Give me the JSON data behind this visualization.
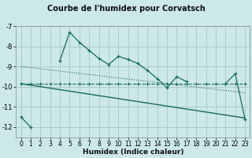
{
  "title": "Courbe de l'humidex pour Corvatsch",
  "xlabel": "Humidex (Indice chaleur)",
  "ylabel": "",
  "bg_color": "#cce8e8",
  "grid_color": "#aacccc",
  "line_color": "#1a6b5a",
  "x": [
    0,
    1,
    2,
    3,
    4,
    5,
    6,
    7,
    8,
    9,
    10,
    11,
    12,
    13,
    14,
    15,
    16,
    17,
    18,
    19,
    20,
    21,
    22,
    23
  ],
  "line1": [
    -11.5,
    -12.0,
    null,
    null,
    -8.7,
    -7.3,
    -7.8,
    -8.2,
    -8.6,
    -8.9,
    -8.5,
    -8.65,
    -8.85,
    -9.2,
    -9.6,
    -10.05,
    -9.5,
    -9.75,
    null,
    null,
    null,
    -9.85,
    -9.35,
    -11.6
  ],
  "line2": [
    -9.85,
    -9.85,
    -9.85,
    -9.85,
    -9.85,
    -9.85,
    -9.85,
    -9.85,
    -9.85,
    -9.85,
    -9.85,
    -9.85,
    -9.85,
    -9.85,
    -9.85,
    -9.85,
    -9.85,
    -9.85,
    -9.85,
    -9.85,
    -9.85,
    -9.85,
    -9.85,
    -9.85
  ],
  "line3_x": [
    0,
    23
  ],
  "line3_y": [
    -9.85,
    -11.55
  ],
  "line4_x": [
    0,
    23
  ],
  "line4_y": [
    -9.0,
    -10.3
  ],
  "ylim": [
    -12.5,
    -7.0
  ],
  "xlim": [
    -0.5,
    23.5
  ],
  "yticks": [
    -12,
    -11,
    -10,
    -9,
    -8,
    -7
  ],
  "xticks": [
    0,
    1,
    2,
    3,
    4,
    5,
    6,
    7,
    8,
    9,
    10,
    11,
    12,
    13,
    14,
    15,
    16,
    17,
    18,
    19,
    20,
    21,
    22,
    23
  ],
  "title_fontsize": 7,
  "xlabel_fontsize": 6.5,
  "tick_fontsize": 5.5
}
